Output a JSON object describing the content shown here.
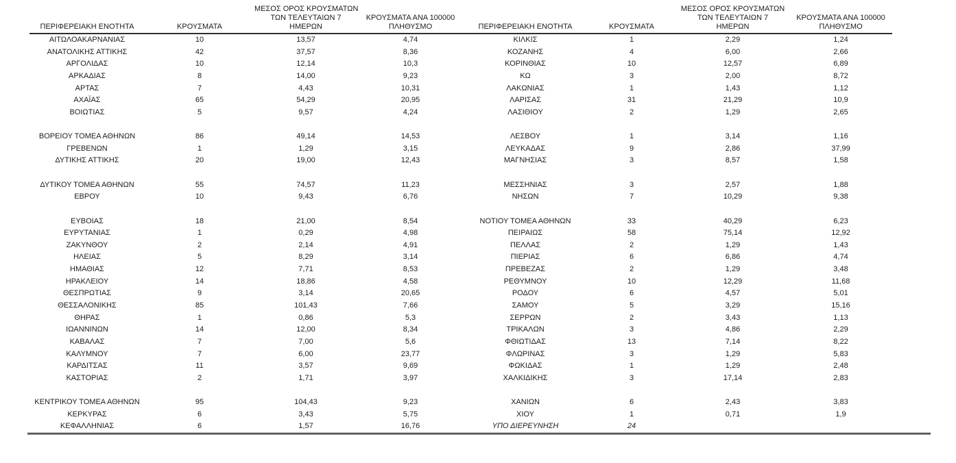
{
  "table": {
    "headers": {
      "region": "ΠΕΡΙΦΕΡΕΙΑΚΗ ΕΝΟΤΗΤΑ",
      "cases": "ΚΡΟΥΣΜΑΤΑ",
      "avg7_line1": "ΜΕΣΟΣ ΟΡΟΣ ΚΡΟΥΣΜΑΤΩΝ",
      "avg7_line2": "ΤΩΝ ΤΕΛΕΥΤΑΙΩΝ 7",
      "avg7_line3": "ΗΜΕΡΩΝ",
      "per100k_line1": "ΚΡΟΥΣΜΑΤΑ ΑΝΑ 100000",
      "per100k_line2": "ΠΛΗΘΥΣΜΟ"
    },
    "left_rows": [
      {
        "cells": [
          "ΑΙΤΩΛΟΑΚΑΡΝΑΝΙΑΣ",
          "10",
          "13,57",
          "4,74"
        ]
      },
      {
        "cells": [
          "ΑΝΑΤΟΛΙΚΗΣ ΑΤΤΙΚΗΣ",
          "42",
          "37,57",
          "8,36"
        ]
      },
      {
        "cells": [
          "ΑΡΓΟΛΙΔΑΣ",
          "10",
          "12,14",
          "10,3"
        ]
      },
      {
        "cells": [
          "ΑΡΚΑΔΙΑΣ",
          "8",
          "14,00",
          "9,23"
        ]
      },
      {
        "cells": [
          "ΑΡΤΑΣ",
          "7",
          "4,43",
          "10,31"
        ]
      },
      {
        "cells": [
          "ΑΧΑΪΑΣ",
          "65",
          "54,29",
          "20,95"
        ]
      },
      {
        "cells": [
          "ΒΟΙΩΤΙΑΣ",
          "5",
          "9,57",
          "4,24"
        ]
      },
      {
        "spacer": true
      },
      {
        "cells": [
          "ΒΟΡΕΙΟΥ ΤΟΜΕΑ ΑΘΗΝΩΝ",
          "86",
          "49,14",
          "14,53"
        ]
      },
      {
        "cells": [
          "ΓΡΕΒΕΝΩΝ",
          "1",
          "1,29",
          "3,15"
        ]
      },
      {
        "cells": [
          "ΔΥΤΙΚΗΣ ΑΤΤΙΚΗΣ",
          "20",
          "19,00",
          "12,43"
        ]
      },
      {
        "spacer": true
      },
      {
        "cells": [
          "ΔΥΤΙΚΟΥ ΤΟΜΕΑ ΑΘΗΝΩΝ",
          "55",
          "74,57",
          "11,23"
        ]
      },
      {
        "cells": [
          "ΕΒΡΟΥ",
          "10",
          "9,43",
          "6,76"
        ]
      },
      {
        "spacer": true
      },
      {
        "cells": [
          "ΕΥΒΟΙΑΣ",
          "18",
          "21,00",
          "8,54"
        ]
      },
      {
        "cells": [
          "ΕΥΡΥΤΑΝΙΑΣ",
          "1",
          "0,29",
          "4,98"
        ]
      },
      {
        "cells": [
          "ΖΑΚΥΝΘΟΥ",
          "2",
          "2,14",
          "4,91"
        ]
      },
      {
        "cells": [
          "ΗΛΕΙΑΣ",
          "5",
          "8,29",
          "3,14"
        ]
      },
      {
        "cells": [
          "ΗΜΑΘΙΑΣ",
          "12",
          "7,71",
          "8,53"
        ]
      },
      {
        "cells": [
          "ΗΡΑΚΛΕΙΟΥ",
          "14",
          "18,86",
          "4,58"
        ]
      },
      {
        "cells": [
          "ΘΕΣΠΡΩΤΙΑΣ",
          "9",
          "3,14",
          "20,65"
        ]
      },
      {
        "cells": [
          "ΘΕΣΣΑΛΟΝΙΚΗΣ",
          "85",
          "101,43",
          "7,66"
        ]
      },
      {
        "cells": [
          "ΘΗΡΑΣ",
          "1",
          "0,86",
          "5,3"
        ]
      },
      {
        "cells": [
          "ΙΩΑΝΝΙΝΩΝ",
          "14",
          "12,00",
          "8,34"
        ]
      },
      {
        "cells": [
          "ΚΑΒΑΛΑΣ",
          "7",
          "7,00",
          "5,6"
        ]
      },
      {
        "cells": [
          "ΚΑΛΥΜΝΟΥ",
          "7",
          "6,00",
          "23,77"
        ]
      },
      {
        "cells": [
          "ΚΑΡΔΙΤΣΑΣ",
          "11",
          "3,57",
          "9,69"
        ]
      },
      {
        "cells": [
          "ΚΑΣΤΟΡΙΑΣ",
          "2",
          "1,71",
          "3,97"
        ]
      },
      {
        "spacer": true
      },
      {
        "cells": [
          "ΚΕΝΤΡΙΚΟΥ ΤΟΜΕΑ ΑΘΗΝΩΝ",
          "95",
          "104,43",
          "9,23"
        ]
      },
      {
        "cells": [
          "ΚΕΡΚΥΡΑΣ",
          "6",
          "3,43",
          "5,75"
        ]
      },
      {
        "cells": [
          "ΚΕΦΑΛΛΗΝΙΑΣ",
          "6",
          "1,57",
          "16,76"
        ]
      }
    ],
    "right_rows": [
      {
        "cells": [
          "ΚΙΛΚΙΣ",
          "1",
          "2,29",
          "1,24"
        ]
      },
      {
        "cells": [
          "ΚΟΖΑΝΗΣ",
          "4",
          "6,00",
          "2,66"
        ]
      },
      {
        "cells": [
          "ΚΟΡΙΝΘΙΑΣ",
          "10",
          "12,57",
          "6,89"
        ]
      },
      {
        "cells": [
          "ΚΩ",
          "3",
          "2,00",
          "8,72"
        ]
      },
      {
        "cells": [
          "ΛΑΚΩΝΙΑΣ",
          "1",
          "1,43",
          "1,12"
        ]
      },
      {
        "cells": [
          "ΛΑΡΙΣΑΣ",
          "31",
          "21,29",
          "10,9"
        ]
      },
      {
        "cells": [
          "ΛΑΣΙΘΙΟΥ",
          "2",
          "1,29",
          "2,65"
        ]
      },
      {
        "spacer": true
      },
      {
        "cells": [
          "ΛΕΣΒΟΥ",
          "1",
          "3,14",
          "1,16"
        ]
      },
      {
        "cells": [
          "ΛΕΥΚΑΔΑΣ",
          "9",
          "2,86",
          "37,99"
        ]
      },
      {
        "cells": [
          "ΜΑΓΝΗΣΙΑΣ",
          "3",
          "8,57",
          "1,58"
        ]
      },
      {
        "spacer": true
      },
      {
        "cells": [
          "ΜΕΣΣΗΝΙΑΣ",
          "3",
          "2,57",
          "1,88"
        ]
      },
      {
        "cells": [
          "ΝΗΣΩΝ",
          "7",
          "10,29",
          "9,38"
        ]
      },
      {
        "spacer": true
      },
      {
        "cells": [
          "ΝΟΤΙΟΥ ΤΟΜΕΑ ΑΘΗΝΩΝ",
          "33",
          "40,29",
          "6,23"
        ]
      },
      {
        "cells": [
          "ΠΕΙΡΑΙΩΣ",
          "58",
          "75,14",
          "12,92"
        ]
      },
      {
        "cells": [
          "ΠΕΛΛΑΣ",
          "2",
          "1,29",
          "1,43"
        ]
      },
      {
        "cells": [
          "ΠΙΕΡΙΑΣ",
          "6",
          "6,86",
          "4,74"
        ]
      },
      {
        "cells": [
          "ΠΡΕΒΕΖΑΣ",
          "2",
          "1,29",
          "3,48"
        ]
      },
      {
        "cells": [
          "ΡΕΘΥΜΝΟΥ",
          "10",
          "12,29",
          "11,68"
        ]
      },
      {
        "cells": [
          "ΡΟΔΟΥ",
          "6",
          "4,57",
          "5,01"
        ]
      },
      {
        "cells": [
          "ΣΑΜΟΥ",
          "5",
          "3,29",
          "15,16"
        ]
      },
      {
        "cells": [
          "ΣΕΡΡΩΝ",
          "2",
          "3,43",
          "1,13"
        ]
      },
      {
        "cells": [
          "ΤΡΙΚΑΛΩΝ",
          "3",
          "4,86",
          "2,29"
        ]
      },
      {
        "cells": [
          "ΦΘΙΩΤΙΔΑΣ",
          "13",
          "7,14",
          "8,22"
        ]
      },
      {
        "cells": [
          "ΦΛΩΡΙΝΑΣ",
          "3",
          "1,29",
          "5,83"
        ]
      },
      {
        "cells": [
          "ΦΩΚΙΔΑΣ",
          "1",
          "1,29",
          "2,48"
        ]
      },
      {
        "cells": [
          "ΧΑΛΚΙΔΙΚΗΣ",
          "3",
          "17,14",
          "2,83"
        ]
      },
      {
        "spacer": true
      },
      {
        "cells": [
          "ΧΑΝΙΩΝ",
          "6",
          "2,43",
          "3,83"
        ]
      },
      {
        "cells": [
          "ΧΙΟΥ",
          "1",
          "0,71",
          "1,9"
        ]
      },
      {
        "cells": [
          "ΥΠΟ ΔΙΕΡΕΥΝΗΣΗ",
          "24",
          "",
          ""
        ],
        "italic": true
      }
    ]
  }
}
